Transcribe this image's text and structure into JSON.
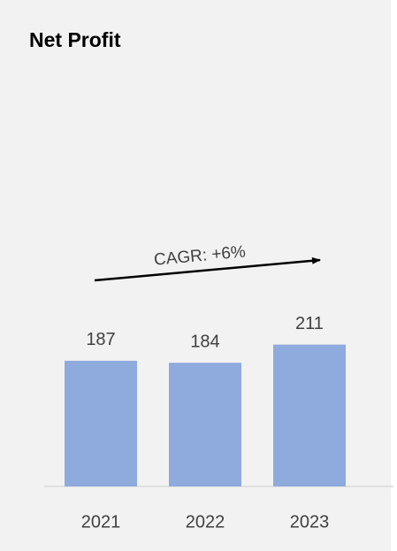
{
  "chart_data": {
    "type": "bar",
    "title": "Net Profit",
    "categories": [
      "2021",
      "2022",
      "2023"
    ],
    "values": [
      187,
      184,
      211
    ],
    "color": "#8faadc",
    "annotation": "CAGR: +6%"
  }
}
